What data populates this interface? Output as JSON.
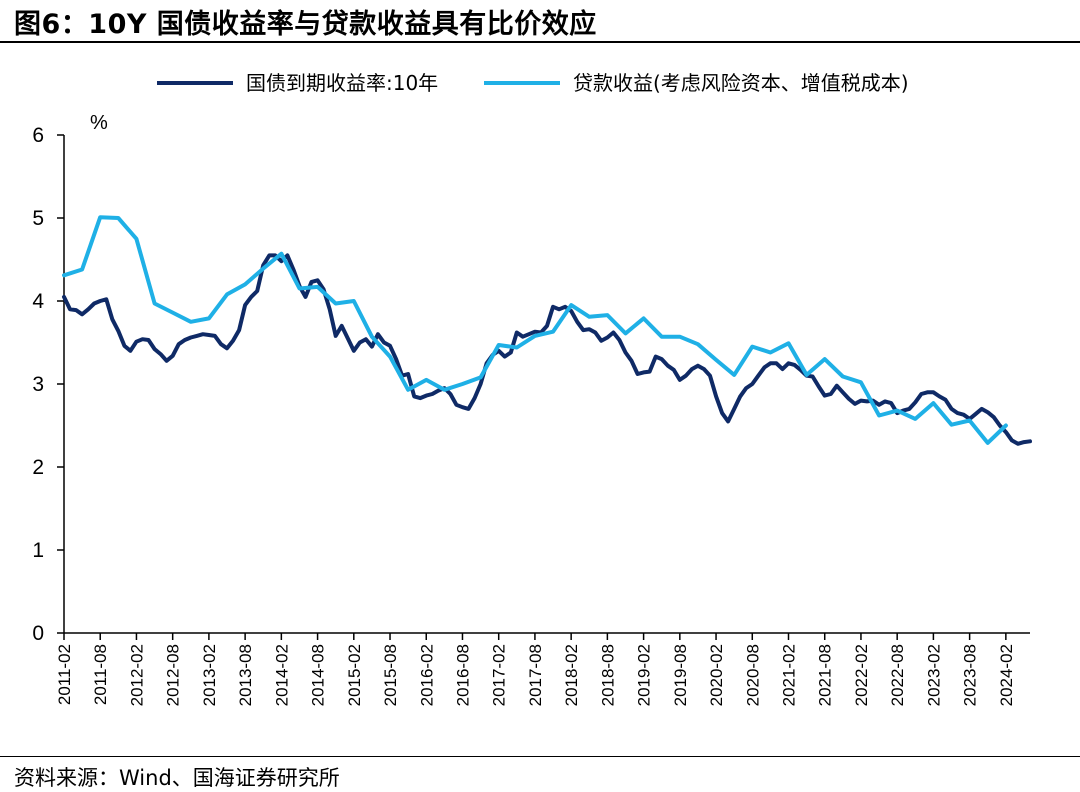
{
  "title": "图6：10Y 国债收益率与贷款收益具有比价效应",
  "source": "资料来源：Wind、国海证券研究所",
  "colors": {
    "series1": "#0f2a66",
    "series2": "#1fb0e6"
  },
  "chart_data": {
    "type": "line",
    "ylabel": "%",
    "ylim": [
      0,
      6
    ],
    "yticks": [
      0,
      1,
      2,
      3,
      4,
      5,
      6
    ],
    "grid": false,
    "legend": "top",
    "xstart": "2011-02",
    "xend": "2024-06",
    "xticks": [
      "2011-02",
      "2011-08",
      "2012-02",
      "2012-08",
      "2013-02",
      "2013-08",
      "2014-02",
      "2014-08",
      "2015-02",
      "2015-08",
      "2016-02",
      "2016-08",
      "2017-02",
      "2017-08",
      "2018-02",
      "2018-08",
      "2019-02",
      "2019-08",
      "2020-02",
      "2020-08",
      "2021-02",
      "2021-08",
      "2022-02",
      "2022-08",
      "2023-02",
      "2023-08",
      "2024-02"
    ],
    "series": [
      {
        "name": "国债到期收益率:10年",
        "points": [
          [
            "2011-02",
            4.05
          ],
          [
            "2011-03",
            3.9
          ],
          [
            "2011-04",
            3.89
          ],
          [
            "2011-05",
            3.84
          ],
          [
            "2011-06",
            3.9
          ],
          [
            "2011-07",
            3.97
          ],
          [
            "2011-08",
            4.0
          ],
          [
            "2011-09",
            4.02
          ],
          [
            "2011-10",
            3.78
          ],
          [
            "2011-11",
            3.64
          ],
          [
            "2011-12",
            3.46
          ],
          [
            "2012-01",
            3.4
          ],
          [
            "2012-02",
            3.51
          ],
          [
            "2012-03",
            3.54
          ],
          [
            "2012-04",
            3.53
          ],
          [
            "2012-05",
            3.42
          ],
          [
            "2012-06",
            3.36
          ],
          [
            "2012-07",
            3.28
          ],
          [
            "2012-08",
            3.34
          ],
          [
            "2012-09",
            3.48
          ],
          [
            "2012-10",
            3.53
          ],
          [
            "2012-11",
            3.56
          ],
          [
            "2012-12",
            3.58
          ],
          [
            "2013-01",
            3.6
          ],
          [
            "2013-02",
            3.59
          ],
          [
            "2013-03",
            3.58
          ],
          [
            "2013-04",
            3.48
          ],
          [
            "2013-05",
            3.43
          ],
          [
            "2013-06",
            3.52
          ],
          [
            "2013-07",
            3.65
          ],
          [
            "2013-08",
            3.95
          ],
          [
            "2013-09",
            4.05
          ],
          [
            "2013-10",
            4.12
          ],
          [
            "2013-11",
            4.43
          ],
          [
            "2013-12",
            4.55
          ],
          [
            "2014-01",
            4.55
          ],
          [
            "2014-02",
            4.48
          ],
          [
            "2014-03",
            4.55
          ],
          [
            "2014-04",
            4.38
          ],
          [
            "2014-05",
            4.18
          ],
          [
            "2014-06",
            4.05
          ],
          [
            "2014-07",
            4.23
          ],
          [
            "2014-08",
            4.25
          ],
          [
            "2014-09",
            4.14
          ],
          [
            "2014-10",
            3.9
          ],
          [
            "2014-11",
            3.58
          ],
          [
            "2014-12",
            3.7
          ],
          [
            "2015-01",
            3.55
          ],
          [
            "2015-02",
            3.4
          ],
          [
            "2015-03",
            3.5
          ],
          [
            "2015-04",
            3.54
          ],
          [
            "2015-05",
            3.45
          ],
          [
            "2015-06",
            3.6
          ],
          [
            "2015-07",
            3.5
          ],
          [
            "2015-08",
            3.46
          ],
          [
            "2015-09",
            3.3
          ],
          [
            "2015-10",
            3.1
          ],
          [
            "2015-11",
            3.12
          ],
          [
            "2015-12",
            2.85
          ],
          [
            "2016-01",
            2.83
          ],
          [
            "2016-02",
            2.86
          ],
          [
            "2016-03",
            2.88
          ],
          [
            "2016-04",
            2.92
          ],
          [
            "2016-05",
            2.95
          ],
          [
            "2016-06",
            2.88
          ],
          [
            "2016-07",
            2.75
          ],
          [
            "2016-08",
            2.72
          ],
          [
            "2016-09",
            2.7
          ],
          [
            "2016-10",
            2.83
          ],
          [
            "2016-11",
            3.0
          ],
          [
            "2016-12",
            3.25
          ],
          [
            "2017-01",
            3.35
          ],
          [
            "2017-02",
            3.4
          ],
          [
            "2017-03",
            3.33
          ],
          [
            "2017-04",
            3.38
          ],
          [
            "2017-05",
            3.62
          ],
          [
            "2017-06",
            3.57
          ],
          [
            "2017-07",
            3.6
          ],
          [
            "2017-08",
            3.63
          ],
          [
            "2017-09",
            3.62
          ],
          [
            "2017-10",
            3.7
          ],
          [
            "2017-11",
            3.93
          ],
          [
            "2017-12",
            3.9
          ],
          [
            "2018-01",
            3.93
          ],
          [
            "2018-02",
            3.88
          ],
          [
            "2018-03",
            3.75
          ],
          [
            "2018-04",
            3.65
          ],
          [
            "2018-05",
            3.66
          ],
          [
            "2018-06",
            3.62
          ],
          [
            "2018-07",
            3.52
          ],
          [
            "2018-08",
            3.56
          ],
          [
            "2018-09",
            3.62
          ],
          [
            "2018-10",
            3.53
          ],
          [
            "2018-11",
            3.38
          ],
          [
            "2018-12",
            3.28
          ],
          [
            "2019-01",
            3.12
          ],
          [
            "2019-02",
            3.14
          ],
          [
            "2019-03",
            3.15
          ],
          [
            "2019-04",
            3.33
          ],
          [
            "2019-05",
            3.3
          ],
          [
            "2019-06",
            3.22
          ],
          [
            "2019-07",
            3.17
          ],
          [
            "2019-08",
            3.05
          ],
          [
            "2019-09",
            3.1
          ],
          [
            "2019-10",
            3.18
          ],
          [
            "2019-11",
            3.22
          ],
          [
            "2019-12",
            3.18
          ],
          [
            "2020-01",
            3.1
          ],
          [
            "2020-02",
            2.85
          ],
          [
            "2020-03",
            2.65
          ],
          [
            "2020-04",
            2.55
          ],
          [
            "2020-05",
            2.7
          ],
          [
            "2020-06",
            2.85
          ],
          [
            "2020-07",
            2.95
          ],
          [
            "2020-08",
            3.0
          ],
          [
            "2020-09",
            3.1
          ],
          [
            "2020-10",
            3.2
          ],
          [
            "2020-11",
            3.25
          ],
          [
            "2020-12",
            3.25
          ],
          [
            "2021-01",
            3.18
          ],
          [
            "2021-02",
            3.25
          ],
          [
            "2021-03",
            3.23
          ],
          [
            "2021-04",
            3.17
          ],
          [
            "2021-05",
            3.1
          ],
          [
            "2021-06",
            3.09
          ],
          [
            "2021-07",
            2.97
          ],
          [
            "2021-08",
            2.86
          ],
          [
            "2021-09",
            2.88
          ],
          [
            "2021-10",
            2.98
          ],
          [
            "2021-11",
            2.9
          ],
          [
            "2021-12",
            2.82
          ],
          [
            "2022-01",
            2.76
          ],
          [
            "2022-02",
            2.8
          ],
          [
            "2022-03",
            2.79
          ],
          [
            "2022-04",
            2.8
          ],
          [
            "2022-05",
            2.75
          ],
          [
            "2022-06",
            2.79
          ],
          [
            "2022-07",
            2.77
          ],
          [
            "2022-08",
            2.65
          ],
          [
            "2022-09",
            2.68
          ],
          [
            "2022-10",
            2.7
          ],
          [
            "2022-11",
            2.78
          ],
          [
            "2022-12",
            2.88
          ],
          [
            "2023-01",
            2.9
          ],
          [
            "2023-02",
            2.9
          ],
          [
            "2023-03",
            2.85
          ],
          [
            "2023-04",
            2.81
          ],
          [
            "2023-05",
            2.7
          ],
          [
            "2023-06",
            2.65
          ],
          [
            "2023-07",
            2.63
          ],
          [
            "2023-08",
            2.58
          ],
          [
            "2023-09",
            2.64
          ],
          [
            "2023-10",
            2.7
          ],
          [
            "2023-11",
            2.66
          ],
          [
            "2023-12",
            2.6
          ],
          [
            "2024-01",
            2.5
          ],
          [
            "2024-02",
            2.42
          ],
          [
            "2024-03",
            2.32
          ],
          [
            "2024-04",
            2.28
          ],
          [
            "2024-05",
            2.3
          ],
          [
            "2024-06",
            2.31
          ]
        ]
      },
      {
        "name": "贷款收益(考虑风险资本、增值税成本)",
        "points": [
          [
            "2011-02",
            4.31
          ],
          [
            "2011-05",
            4.38
          ],
          [
            "2011-08",
            5.01
          ],
          [
            "2011-11",
            5.0
          ],
          [
            "2012-02",
            4.75
          ],
          [
            "2012-05",
            3.97
          ],
          [
            "2012-08",
            3.86
          ],
          [
            "2012-11",
            3.75
          ],
          [
            "2013-02",
            3.79
          ],
          [
            "2013-05",
            4.08
          ],
          [
            "2013-08",
            4.2
          ],
          [
            "2013-11",
            4.39
          ],
          [
            "2014-02",
            4.57
          ],
          [
            "2014-05",
            4.15
          ],
          [
            "2014-08",
            4.17
          ],
          [
            "2014-11",
            3.97
          ],
          [
            "2015-02",
            4.0
          ],
          [
            "2015-05",
            3.57
          ],
          [
            "2015-08",
            3.33
          ],
          [
            "2015-11",
            2.93
          ],
          [
            "2016-02",
            3.05
          ],
          [
            "2016-05",
            2.93
          ],
          [
            "2016-08",
            3.0
          ],
          [
            "2016-11",
            3.08
          ],
          [
            "2017-02",
            3.47
          ],
          [
            "2017-05",
            3.44
          ],
          [
            "2017-08",
            3.58
          ],
          [
            "2017-11",
            3.63
          ],
          [
            "2018-02",
            3.95
          ],
          [
            "2018-05",
            3.81
          ],
          [
            "2018-08",
            3.83
          ],
          [
            "2018-11",
            3.61
          ],
          [
            "2019-02",
            3.79
          ],
          [
            "2019-05",
            3.57
          ],
          [
            "2019-08",
            3.57
          ],
          [
            "2019-11",
            3.48
          ],
          [
            "2020-02",
            3.29
          ],
          [
            "2020-05",
            3.11
          ],
          [
            "2020-08",
            3.45
          ],
          [
            "2020-11",
            3.38
          ],
          [
            "2021-02",
            3.49
          ],
          [
            "2021-05",
            3.11
          ],
          [
            "2021-08",
            3.3
          ],
          [
            "2021-11",
            3.09
          ],
          [
            "2022-02",
            3.02
          ],
          [
            "2022-05",
            2.62
          ],
          [
            "2022-08",
            2.68
          ],
          [
            "2022-11",
            2.58
          ],
          [
            "2023-02",
            2.77
          ],
          [
            "2023-05",
            2.51
          ],
          [
            "2023-08",
            2.56
          ],
          [
            "2023-11",
            2.29
          ],
          [
            "2024-02",
            2.5
          ]
        ]
      }
    ]
  }
}
